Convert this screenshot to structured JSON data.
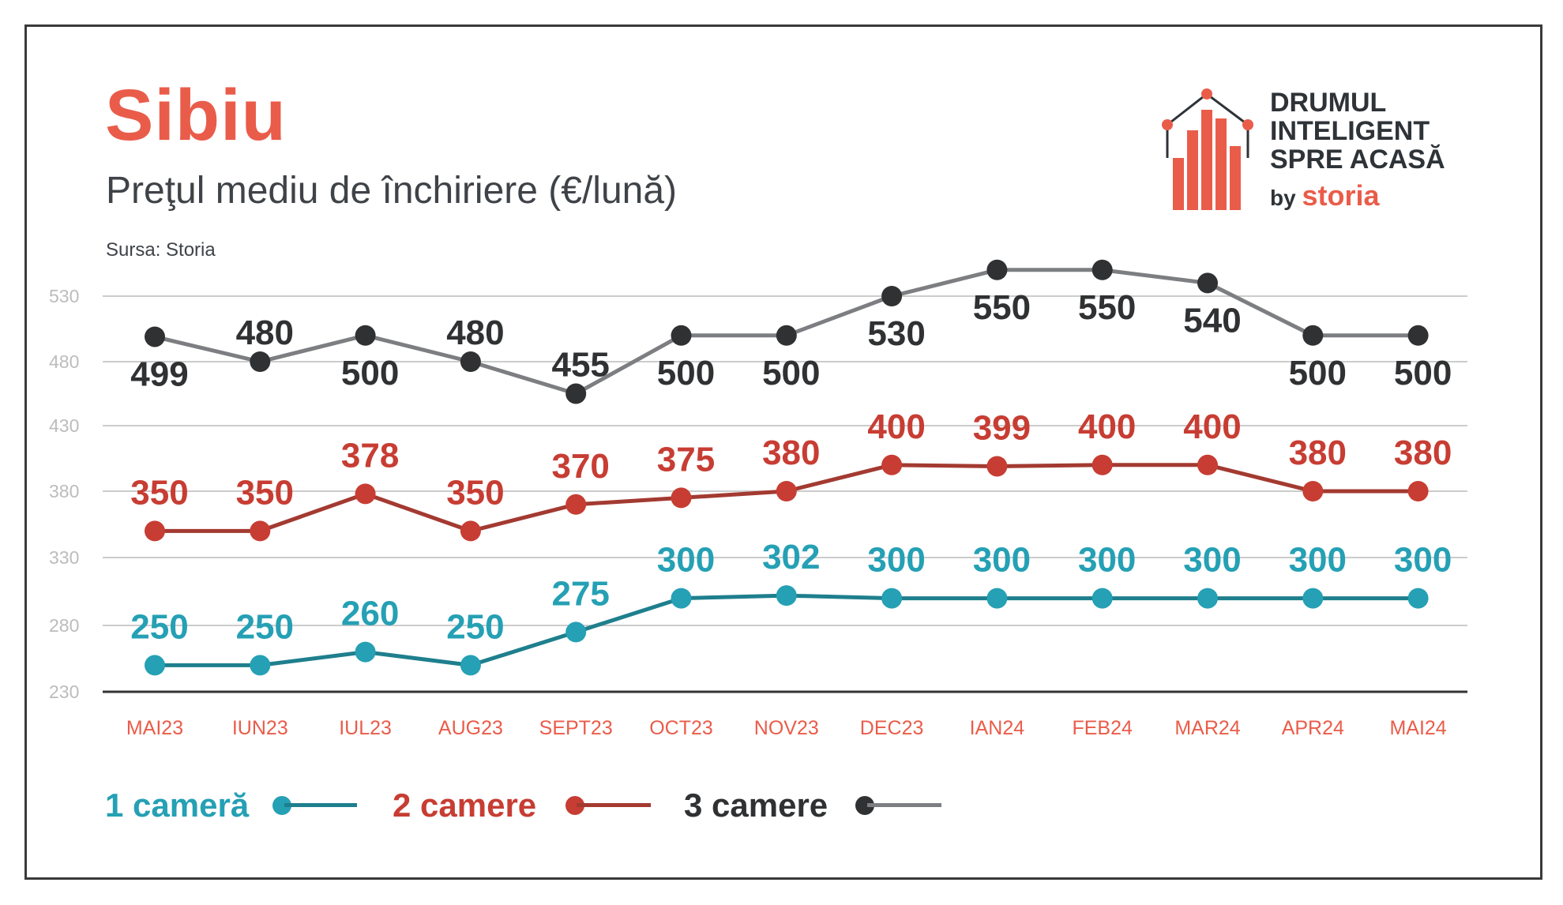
{
  "title": "Sibiu",
  "subtitle": "Preţul mediu de închiriere (€/lună)",
  "source": "Sursa: Storia",
  "logo": {
    "line1": "DRUMUL",
    "line2": "INTELIGENT",
    "line3": "SPRE ACASĂ",
    "by": "by",
    "brand": "storia"
  },
  "colors": {
    "accent": "#ea5c4a",
    "teal": "#25a0b4",
    "teal_line": "#1e7f8d",
    "red": "#c73d33",
    "red_line": "#a33a31",
    "dark": "#2f3133",
    "gray_line": "#7d7e82",
    "grid": "#cccccc",
    "tick": "#bcbcbc",
    "axis": "#333333"
  },
  "chart_data": {
    "type": "line",
    "categories": [
      "MAI23",
      "IUN23",
      "IUL23",
      "AUG23",
      "SEPT23",
      "OCT23",
      "NOV23",
      "DEC23",
      "IAN24",
      "FEB24",
      "MAR24",
      "APR24",
      "MAI24"
    ],
    "yticks": [
      "530",
      "480",
      "430",
      "380",
      "330",
      "280",
      "230"
    ],
    "ylim": [
      230,
      530
    ],
    "grid": true,
    "legend_position": "bottom-left",
    "series": [
      {
        "name": "1 cameră",
        "color": "teal",
        "labels": [
          "250",
          "250",
          "260",
          "250",
          "275",
          "300",
          "302",
          "300",
          "300",
          "300",
          "300",
          "300",
          "300"
        ],
        "values": [
          250,
          250,
          260,
          250,
          275,
          300,
          302,
          300,
          300,
          300,
          300,
          300,
          300
        ]
      },
      {
        "name": "2 camere",
        "color": "red",
        "labels": [
          "350",
          "350",
          "378",
          "350",
          "370",
          "375",
          "380",
          "400",
          "399",
          "400",
          "400",
          "380",
          "380"
        ],
        "values": [
          350,
          350,
          378,
          350,
          370,
          375,
          380,
          400,
          399,
          400,
          400,
          380,
          380
        ]
      },
      {
        "name": "3 camere",
        "color": "gray",
        "labels": [
          "499",
          "480",
          "500",
          "480",
          "455",
          "500",
          "500",
          "530",
          "550",
          "550",
          "540",
          "500",
          "500"
        ],
        "values": [
          499,
          480,
          500,
          480,
          455,
          500,
          500,
          530,
          550,
          550,
          540,
          500,
          500
        ]
      }
    ]
  }
}
